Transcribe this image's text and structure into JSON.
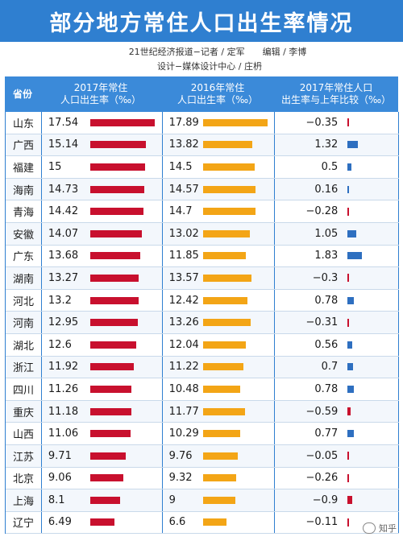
{
  "title": "部分地方常住人口出生率情况",
  "credits": {
    "line1": "21世纪经济报道−记者 / 定军　　编辑 / 李博",
    "line2": "设计−媒体设计中心 / 庄枬"
  },
  "headers": {
    "province": "省份",
    "col2017": "2017年常住\n人口出生率（‰）",
    "col2016": "2016年常住\n人口出生率（‰）",
    "colchange": "2017年常住人口\n出生率与上年比较（‰）"
  },
  "colors": {
    "title_bg": "#2f7fd0",
    "bar2017": "#c8102e",
    "bar2016": "#f3a516",
    "barPositive": "#2e6fc0",
    "barNegative": "#c8102e"
  },
  "watermark": "知乎",
  "chart_data": {
    "type": "table",
    "columns": [
      "省份",
      "2017年常住人口出生率（‰）",
      "2016年常住人口出生率（‰）",
      "2017年常住人口出生率与上年比较（‰）"
    ],
    "rows": [
      {
        "province": "山东",
        "y2017": "17.54",
        "y2016": "17.89",
        "change": "−0.35"
      },
      {
        "province": "广西",
        "y2017": "15.14",
        "y2016": "13.82",
        "change": "1.32"
      },
      {
        "province": "福建",
        "y2017": "15",
        "y2016": "14.5",
        "change": "0.5"
      },
      {
        "province": "海南",
        "y2017": "14.73",
        "y2016": "14.57",
        "change": "0.16"
      },
      {
        "province": "青海",
        "y2017": "14.42",
        "y2016": "14.7",
        "change": "−0.28"
      },
      {
        "province": "安徽",
        "y2017": "14.07",
        "y2016": "13.02",
        "change": "1.05"
      },
      {
        "province": "广东",
        "y2017": "13.68",
        "y2016": "11.85",
        "change": "1.83"
      },
      {
        "province": "湖南",
        "y2017": "13.27",
        "y2016": "13.57",
        "change": "−0.3"
      },
      {
        "province": "河北",
        "y2017": "13.2",
        "y2016": "12.42",
        "change": "0.78"
      },
      {
        "province": "河南",
        "y2017": "12.95",
        "y2016": "13.26",
        "change": "−0.31"
      },
      {
        "province": "湖北",
        "y2017": "12.6",
        "y2016": "12.04",
        "change": "0.56"
      },
      {
        "province": "浙江",
        "y2017": "11.92",
        "y2016": "11.22",
        "change": "0.7"
      },
      {
        "province": "四川",
        "y2017": "11.26",
        "y2016": "10.48",
        "change": "0.78"
      },
      {
        "province": "重庆",
        "y2017": "11.18",
        "y2016": "11.77",
        "change": "−0.59"
      },
      {
        "province": "山西",
        "y2017": "11.06",
        "y2016": "10.29",
        "change": "0.77"
      },
      {
        "province": "江苏",
        "y2017": "9.71",
        "y2016": "9.76",
        "change": "−0.05"
      },
      {
        "province": "北京",
        "y2017": "9.06",
        "y2016": "9.32",
        "change": "−0.26"
      },
      {
        "province": "上海",
        "y2017": "8.1",
        "y2016": "9",
        "change": "−0.9"
      },
      {
        "province": "辽宁",
        "y2017": "6.49",
        "y2016": "6.6",
        "change": "−0.11"
      }
    ]
  }
}
